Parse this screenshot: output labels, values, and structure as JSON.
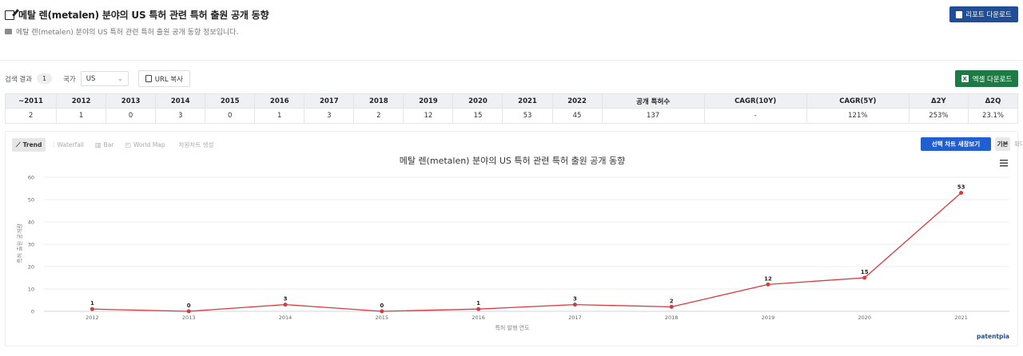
{
  "header": {
    "title": "메탈 렌(metalen) 분야의 US 특허 관련 특허 출원 공개 동향",
    "subtitle": "메탈 렌(metalen) 분야의 US 특허 관련 특허 출원 공개 동향 정보입니다.",
    "report_button": "리포트 다운로드"
  },
  "filters": {
    "result_label": "검색 결과",
    "result_count": "1",
    "country_label": "국가",
    "country_value": "US",
    "url_copy_label": "URL 복사",
    "excel_button": "엑셀 다운로드"
  },
  "table": {
    "headers": [
      "~2011",
      "2012",
      "2013",
      "2014",
      "2015",
      "2016",
      "2017",
      "2018",
      "2019",
      "2020",
      "2021",
      "2022",
      "공개 특허수",
      "CAGR(10Y)",
      "CAGR(5Y)",
      "Δ2Y",
      "Δ2Q"
    ],
    "values": [
      "2",
      "1",
      "0",
      "3",
      "0",
      "1",
      "3",
      "2",
      "12",
      "15",
      "53",
      "45",
      "137",
      "-",
      "121%",
      "253%",
      "23.1%"
    ]
  },
  "toolbar": {
    "tabs": [
      {
        "label": "Trend",
        "icon": "trend-icon",
        "active": true
      },
      {
        "label": "Waterfall",
        "icon": "waterfall-icon",
        "active": false
      },
      {
        "label": "Bar",
        "icon": "bar-icon",
        "active": false
      },
      {
        "label": "World Map",
        "icon": "world-map-icon",
        "active": false
      },
      {
        "label": "차원차트 생성",
        "icon": "chart-create-icon",
        "active": false
      }
    ],
    "new_window_button": "선택 차트 새창보기",
    "basic_label": "기본",
    "expand_label": "확대"
  },
  "chart_data": {
    "type": "line",
    "title": "메탈 렌(metalen) 분야의 US 특허 관련 특허 출원 공개 동향",
    "xlabel": "특허 발행 연도",
    "ylabel": "특허 출원 공개량",
    "categories": [
      "2012",
      "2013",
      "2014",
      "2015",
      "2016",
      "2017",
      "2018",
      "2019",
      "2020",
      "2021"
    ],
    "series": [
      {
        "values": [
          1,
          0,
          3,
          0,
          1,
          3,
          2,
          12,
          15,
          53
        ]
      }
    ],
    "ylim": [
      0,
      60
    ],
    "yticks": [
      0,
      10,
      20,
      30,
      40,
      50,
      60
    ],
    "grid": true,
    "line_color": "#d9393e",
    "credit": "patentpia"
  },
  "colors": {
    "report_button": "#1f4e95",
    "excel_button": "#1d7a44",
    "new_window_button": "#1f5fd1"
  }
}
